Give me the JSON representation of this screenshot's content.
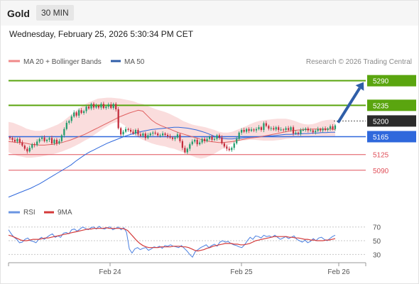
{
  "header": {
    "instrument": "Gold",
    "timeframe": "30 MIN"
  },
  "datetime": "Wednesday, February 25, 2026 5:30:34 PM CET",
  "legend": {
    "bollinger": "MA 20 + Bollinger Bands",
    "ma50": "MA 50",
    "rsi": "RSI",
    "rsi_ma": "9MA"
  },
  "copyright": "Research © 2026 Trading Central",
  "colors": {
    "resistance": "#5aa50f",
    "support": "#e0505a",
    "pivot": "#2f68dc",
    "current": "#2b2b2b",
    "bollinger": "#f7c6c6",
    "ma20": "#e06060",
    "ma50": "#2f68dc",
    "up": "#1f9b6b",
    "down": "#c22a3a",
    "arrow": "#2f5ea8"
  },
  "chart_data": [
    {
      "type": "candlestick",
      "x_ticks": [
        "Feb 24",
        "Feb 25",
        "Feb 26"
      ],
      "levels": [
        {
          "value": 5290,
          "label": "5290",
          "kind": "resistance"
        },
        {
          "value": 5235,
          "label": "5235",
          "kind": "resistance"
        },
        {
          "value": 5200,
          "label": "5200",
          "kind": "current"
        },
        {
          "value": 5165,
          "label": "5165",
          "kind": "pivot"
        },
        {
          "value": 5125,
          "label": "5125",
          "kind": "support"
        },
        {
          "value": 5090,
          "label": "5090",
          "kind": "support"
        }
      ],
      "forecast_target": 5290,
      "price_range": [
        5023,
        5318
      ],
      "close": [
        5162,
        5158,
        5154,
        5160,
        5152,
        5145,
        5138,
        5132,
        5140,
        5148,
        5146,
        5154,
        5160,
        5163,
        5155,
        5158,
        5162,
        5150,
        5158,
        5150,
        5155,
        5168,
        5182,
        5196,
        5200,
        5210,
        5219,
        5212,
        5224,
        5218,
        5222,
        5232,
        5228,
        5238,
        5230,
        5234,
        5230,
        5238,
        5229,
        5232,
        5237,
        5229,
        5238,
        5226,
        5184,
        5170,
        5176,
        5182,
        5180,
        5176,
        5172,
        5180,
        5170,
        5167,
        5172,
        5162,
        5168,
        5172,
        5174,
        5172,
        5168,
        5168,
        5172,
        5169,
        5166,
        5163,
        5160,
        5163,
        5170,
        5155,
        5140,
        5130,
        5138,
        5148,
        5154,
        5158,
        5148,
        5152,
        5160,
        5155,
        5160,
        5165,
        5158,
        5160,
        5168,
        5163,
        5150,
        5143,
        5138,
        5135,
        5140,
        5150,
        5160,
        5174,
        5180,
        5176,
        5182,
        5178,
        5181,
        5179,
        5182,
        5186,
        5180,
        5195,
        5189,
        5183,
        5184,
        5181,
        5186,
        5180,
        5181,
        5180,
        5184,
        5180,
        5186,
        5172,
        5174,
        5172,
        5180,
        5180,
        5183,
        5179,
        5179,
        5175,
        5178,
        5182,
        5179,
        5183,
        5180,
        5183,
        5188,
        5182,
        5190
      ],
      "ma20": [
        5154,
        5153,
        5152,
        5152,
        5150,
        5148,
        5147,
        5146,
        5146,
        5147,
        5148,
        5150,
        5152,
        5155,
        5158,
        5162,
        5166,
        5170,
        5175,
        5180,
        5185,
        5190,
        5195,
        5200,
        5205,
        5210,
        5214,
        5218,
        5221,
        5224,
        5222,
        5212,
        5202,
        5195,
        5190,
        5186,
        5182,
        5178,
        5174,
        5171,
        5168,
        5165,
        5162,
        5159,
        5156,
        5154,
        5153,
        5152,
        5152,
        5153,
        5154,
        5156,
        5158,
        5160,
        5162,
        5163,
        5164,
        5166,
        5168,
        5170,
        5172,
        5174,
        5176,
        5178,
        5179,
        5180,
        5181,
        5181,
        5182,
        5182,
        5182,
        5182,
        5182,
        5181
      ],
      "bb_upper": [
        5198,
        5196,
        5192,
        5188,
        5183,
        5180,
        5178,
        5178,
        5180,
        5184,
        5188,
        5192,
        5198,
        5206,
        5214,
        5222,
        5230,
        5237,
        5242,
        5246,
        5250,
        5251,
        5252,
        5252,
        5251,
        5250,
        5248,
        5246,
        5244,
        5240,
        5238,
        5234,
        5230,
        5226,
        5223,
        5220,
        5216,
        5211,
        5206,
        5200,
        5196,
        5192,
        5190,
        5188,
        5186,
        5183,
        5180,
        5176,
        5174,
        5174,
        5176,
        5180,
        5184,
        5188,
        5193,
        5197,
        5200,
        5202,
        5203,
        5204,
        5205,
        5205,
        5205,
        5203,
        5200,
        5196,
        5193,
        5192,
        5193,
        5196,
        5200,
        5202,
        5203,
        5202
      ],
      "bb_lower": [
        5130,
        5126,
        5122,
        5120,
        5118,
        5118,
        5119,
        5120,
        5122,
        5124,
        5126,
        5129,
        5132,
        5136,
        5140,
        5145,
        5150,
        5156,
        5161,
        5168,
        5175,
        5182,
        5188,
        5194,
        5197,
        5196,
        5190,
        5180,
        5170,
        5163,
        5158,
        5154,
        5150,
        5147,
        5145,
        5143,
        5140,
        5138,
        5134,
        5130,
        5126,
        5122,
        5118,
        5116,
        5118,
        5122,
        5127,
        5133,
        5139,
        5145,
        5150,
        5154,
        5156,
        5157,
        5158,
        5158,
        5157,
        5156,
        5156,
        5156,
        5157,
        5158,
        5160,
        5161,
        5162,
        5162,
        5163,
        5163,
        5164,
        5165,
        5165,
        5166,
        5166,
        5166
      ],
      "ma50": [
        5030,
        5034,
        5038,
        5042,
        5046,
        5050,
        5055,
        5060,
        5066,
        5072,
        5078,
        5084,
        5090,
        5096,
        5102,
        5110,
        5117,
        5124,
        5130,
        5135,
        5140,
        5145,
        5150,
        5154,
        5158,
        5162,
        5166,
        5169,
        5172,
        5175,
        5177,
        5179,
        5181,
        5182,
        5183,
        5184,
        5185,
        5186,
        5186,
        5185,
        5184,
        5182,
        5180,
        5177,
        5174,
        5170,
        5166,
        5163,
        5161,
        5160,
        5160,
        5161,
        5162,
        5163,
        5164,
        5165,
        5165,
        5166,
        5167,
        5167,
        5168,
        5169,
        5170,
        5170,
        5171,
        5171,
        5172,
        5172,
        5173,
        5173,
        5174,
        5174,
        5175,
        5175
      ]
    },
    {
      "type": "line",
      "title": "RSI",
      "y_ticks": [
        70,
        50,
        30
      ],
      "ylim": [
        20,
        78
      ],
      "series": [
        {
          "name": "RSI",
          "values": [
            66,
            60,
            55,
            52,
            47,
            48,
            52,
            54,
            50,
            49,
            47,
            52,
            55,
            52,
            55,
            58,
            60,
            55,
            57,
            55,
            61,
            62,
            60,
            66,
            67,
            64,
            67,
            70,
            68,
            66,
            69,
            70,
            67,
            71,
            68,
            67,
            69,
            70,
            66,
            68,
            70,
            66,
            69,
            62,
            38,
            32,
            38,
            40,
            37,
            39,
            40,
            36,
            38,
            41,
            40,
            42,
            39,
            43,
            42,
            44,
            42,
            41,
            40,
            43,
            39,
            35,
            30,
            26,
            34,
            37,
            40,
            42,
            44,
            40,
            43,
            45,
            42,
            48,
            50,
            48,
            49,
            46,
            44,
            43,
            41,
            40,
            44,
            50,
            55,
            52,
            57,
            56,
            54,
            58,
            56,
            57,
            55,
            58,
            55,
            52,
            54,
            56,
            53,
            55,
            57,
            52,
            50,
            48,
            51,
            47,
            49,
            53,
            50,
            54,
            55,
            52,
            50,
            53,
            56,
            58
          ]
        },
        {
          "name": "9MA",
          "values": [
            58,
            57,
            55,
            53,
            51,
            50,
            50,
            51,
            52,
            52,
            52,
            53,
            54,
            54,
            55,
            56,
            57,
            58,
            59,
            60,
            61,
            62,
            63,
            64,
            65,
            66,
            67,
            67,
            68,
            68,
            68,
            68,
            69,
            68,
            68,
            68,
            68,
            68,
            67,
            65,
            60,
            55,
            50,
            46,
            43,
            41,
            40,
            40,
            40,
            40,
            41,
            41,
            41,
            41,
            42,
            42,
            42,
            41,
            41,
            40,
            38,
            36,
            35,
            36,
            37,
            39,
            40,
            42,
            43,
            44,
            45,
            46,
            46,
            46,
            45,
            45,
            44,
            44,
            45,
            46,
            48,
            50,
            51,
            52,
            53,
            54,
            55,
            56,
            56,
            56,
            56,
            56,
            55,
            55,
            54,
            54,
            53,
            52,
            52,
            51,
            51,
            50,
            50,
            50,
            51,
            51,
            52,
            53
          ]
        }
      ]
    }
  ]
}
